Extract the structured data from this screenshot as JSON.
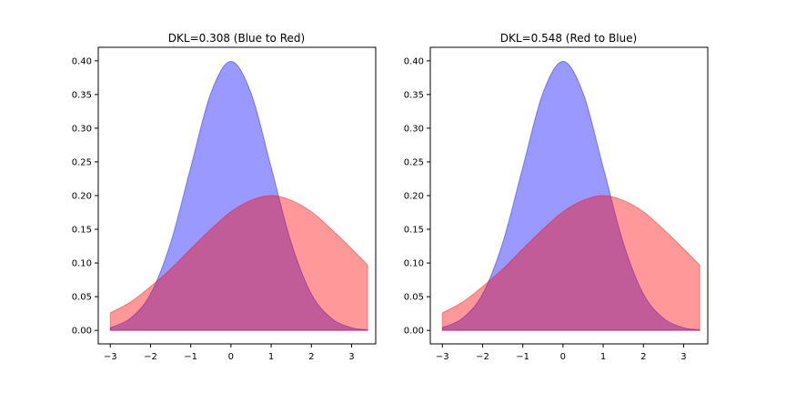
{
  "chart_data": [
    {
      "type": "area",
      "title": "DKL=0.308 (Blue to Red)",
      "xlabel": "",
      "ylabel": "",
      "xlim": [
        -3.3,
        3.6
      ],
      "ylim": [
        -0.02,
        0.42
      ],
      "xticks": [
        -3,
        -2,
        -1,
        0,
        1,
        2,
        3
      ],
      "yticks": [
        0.0,
        0.05,
        0.1,
        0.15,
        0.2,
        0.25,
        0.3,
        0.35,
        0.4
      ],
      "grid": false,
      "series": [
        {
          "color": "#0000ff",
          "alpha": 0.4,
          "x": [
            -3.0,
            -2.5,
            -2.0,
            -1.5,
            -1.0,
            -0.5,
            0.0,
            0.5,
            1.0,
            1.5,
            2.0,
            2.5,
            3.0,
            3.4
          ],
          "values": [
            0.004,
            0.018,
            0.054,
            0.13,
            0.242,
            0.352,
            0.399,
            0.352,
            0.242,
            0.13,
            0.054,
            0.018,
            0.004,
            0.001
          ]
        },
        {
          "color": "#ff0000",
          "alpha": 0.4,
          "x": [
            -3.0,
            -2.5,
            -2.0,
            -1.5,
            -1.0,
            -0.5,
            0.0,
            0.5,
            1.0,
            1.5,
            2.0,
            2.5,
            3.0,
            3.4
          ],
          "values": [
            0.026,
            0.042,
            0.065,
            0.091,
            0.121,
            0.15,
            0.176,
            0.193,
            0.2,
            0.193,
            0.176,
            0.15,
            0.121,
            0.097
          ]
        }
      ]
    },
    {
      "type": "area",
      "title": "DKL=0.548 (Red to Blue)",
      "xlabel": "",
      "ylabel": "",
      "xlim": [
        -3.3,
        3.6
      ],
      "ylim": [
        -0.02,
        0.42
      ],
      "xticks": [
        -3,
        -2,
        -1,
        0,
        1,
        2,
        3
      ],
      "yticks": [
        0.0,
        0.05,
        0.1,
        0.15,
        0.2,
        0.25,
        0.3,
        0.35,
        0.4
      ],
      "grid": false,
      "series": [
        {
          "color": "#0000ff",
          "alpha": 0.4,
          "x": [
            -3.0,
            -2.5,
            -2.0,
            -1.5,
            -1.0,
            -0.5,
            0.0,
            0.5,
            1.0,
            1.5,
            2.0,
            2.5,
            3.0,
            3.4
          ],
          "values": [
            0.004,
            0.018,
            0.054,
            0.13,
            0.242,
            0.352,
            0.399,
            0.352,
            0.242,
            0.13,
            0.054,
            0.018,
            0.004,
            0.001
          ]
        },
        {
          "color": "#ff0000",
          "alpha": 0.4,
          "x": [
            -3.0,
            -2.5,
            -2.0,
            -1.5,
            -1.0,
            -0.5,
            0.0,
            0.5,
            1.0,
            1.5,
            2.0,
            2.5,
            3.0,
            3.4
          ],
          "values": [
            0.026,
            0.042,
            0.065,
            0.091,
            0.121,
            0.15,
            0.176,
            0.193,
            0.2,
            0.193,
            0.176,
            0.15,
            0.121,
            0.097
          ]
        }
      ]
    }
  ]
}
